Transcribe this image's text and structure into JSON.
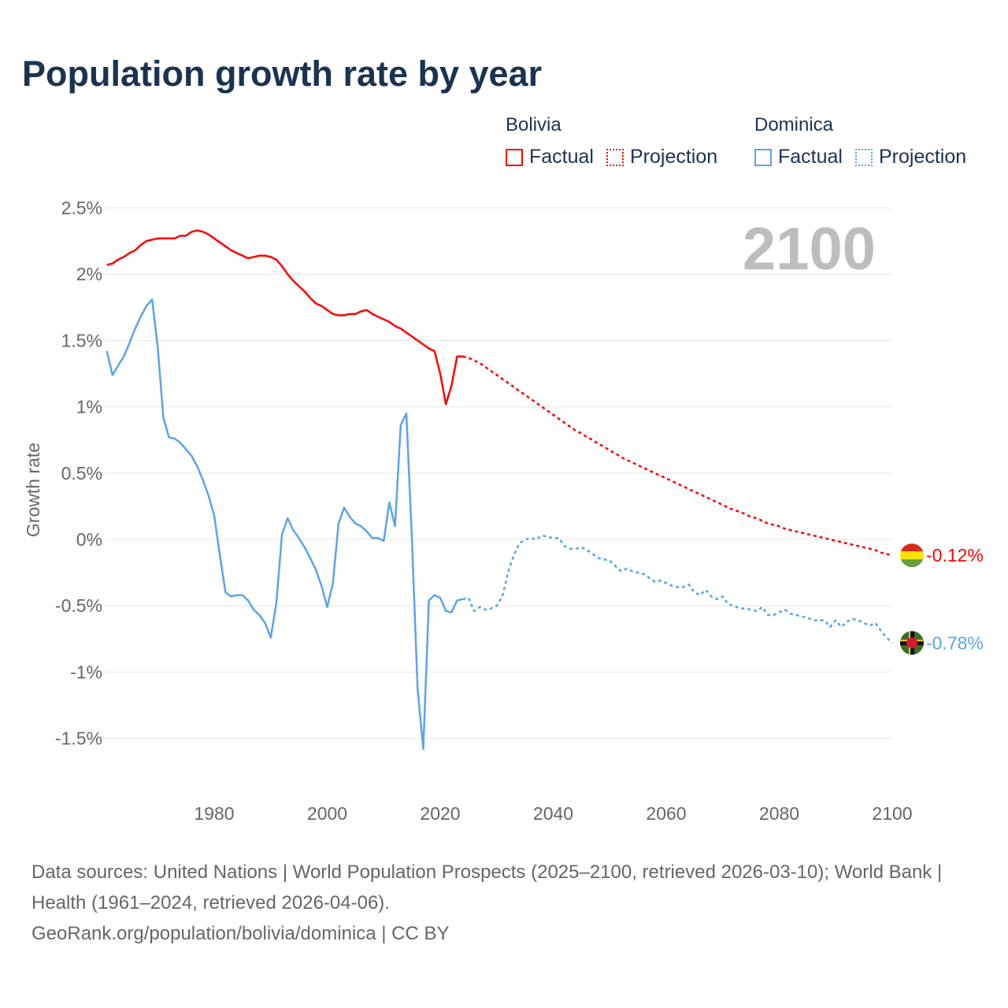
{
  "title": "Population growth rate by year",
  "legend": {
    "groups": [
      {
        "country": "Bolivia",
        "factual": "Factual",
        "projection": "Projection",
        "color": "#ff0000"
      },
      {
        "country": "Dominica",
        "factual": "Factual",
        "projection": "Projection",
        "color": "#5ba4ea"
      }
    ]
  },
  "year_display": "2100",
  "footer": {
    "sources": "Data sources: United Nations | World Population Prospects (2025–2100, retrieved 2026-03-10); World Bank | Health (1961–2024, retrieved 2026-04-06).",
    "credit": "GeoRank.org/population/bolivia/dominica | CC BY"
  },
  "chart_data": {
    "type": "line",
    "title": "Population growth rate by year",
    "xlabel": "",
    "ylabel": "Growth rate",
    "xlim": [
      1961,
      2100
    ],
    "ylim": [
      -1.75,
      2.5
    ],
    "x_ticks": [
      1980,
      2000,
      2020,
      2040,
      2060,
      2080,
      2100
    ],
    "x_tick_labels": [
      "1980",
      "2000",
      "2020",
      "2040",
      "2060",
      "2080",
      "2100"
    ],
    "y_ticks": [
      2.5,
      2,
      1.5,
      1,
      0.5,
      0,
      -0.5,
      -1,
      -1.5
    ],
    "y_tick_labels": [
      "2.5%",
      "2%",
      "1.5%",
      "1%",
      "0.5%",
      "0%",
      "-0.5%",
      "-1%",
      "-1.5%"
    ],
    "grid": true,
    "legend_position": "top-right",
    "series": [
      {
        "name": "Bolivia",
        "color": "#ff0000",
        "end_label": "-0.12%",
        "factual": {
          "start": 1961,
          "values": [
            2.07,
            2.08,
            2.11,
            2.13,
            2.16,
            2.18,
            2.22,
            2.25,
            2.26,
            2.27,
            2.27,
            2.27,
            2.27,
            2.29,
            2.29,
            2.32,
            2.33,
            2.32,
            2.3,
            2.27,
            2.24,
            2.21,
            2.18,
            2.16,
            2.14,
            2.12,
            2.13,
            2.14,
            2.14,
            2.13,
            2.11,
            2.06,
            2.0,
            1.95,
            1.91,
            1.87,
            1.82,
            1.78,
            1.76,
            1.73,
            1.7,
            1.69,
            1.69,
            1.7,
            1.7,
            1.72,
            1.73,
            1.7,
            1.68,
            1.66,
            1.64,
            1.61,
            1.59,
            1.56,
            1.53,
            1.5,
            1.47,
            1.44,
            1.42,
            1.25,
            1.02,
            1.16,
            1.38,
            1.38
          ]
        },
        "projection": {
          "start": 2024,
          "values": [
            1.38,
            1.37,
            1.35,
            1.33,
            1.3,
            1.27,
            1.24,
            1.21,
            1.18,
            1.15,
            1.12,
            1.09,
            1.06,
            1.03,
            1.0,
            0.97,
            0.94,
            0.91,
            0.88,
            0.85,
            0.82,
            0.8,
            0.77,
            0.75,
            0.72,
            0.7,
            0.67,
            0.65,
            0.62,
            0.6,
            0.58,
            0.56,
            0.54,
            0.52,
            0.5,
            0.48,
            0.46,
            0.44,
            0.42,
            0.4,
            0.38,
            0.36,
            0.34,
            0.32,
            0.3,
            0.28,
            0.26,
            0.24,
            0.22,
            0.21,
            0.19,
            0.17,
            0.16,
            0.14,
            0.12,
            0.11,
            0.1,
            0.08,
            0.07,
            0.06,
            0.05,
            0.04,
            0.03,
            0.02,
            0.01,
            0.0,
            -0.01,
            -0.02,
            -0.03,
            -0.04,
            -0.05,
            -0.06,
            -0.07,
            -0.08,
            -0.1,
            -0.11,
            -0.12
          ]
        }
      },
      {
        "name": "Dominica",
        "color": "#5ba4ea",
        "end_label": "-0.78%",
        "factual": {
          "start": 1961,
          "values": [
            1.42,
            1.24,
            1.31,
            1.38,
            1.48,
            1.59,
            1.68,
            1.76,
            1.81,
            1.45,
            0.92,
            0.77,
            0.76,
            0.73,
            0.68,
            0.63,
            0.55,
            0.45,
            0.33,
            0.18,
            -0.12,
            -0.4,
            -0.43,
            -0.42,
            -0.42,
            -0.46,
            -0.53,
            -0.57,
            -0.63,
            -0.74,
            -0.48,
            0.04,
            0.16,
            0.07,
            0.01,
            -0.06,
            -0.14,
            -0.23,
            -0.35,
            -0.51,
            -0.33,
            0.12,
            0.24,
            0.17,
            0.12,
            0.1,
            0.06,
            0.01,
            0.01,
            -0.01,
            0.28,
            0.1,
            0.86,
            0.95,
            0.0,
            -1.13,
            -1.58,
            -0.46,
            -0.42,
            -0.44,
            -0.54,
            -0.55,
            -0.46,
            -0.45
          ]
        },
        "projection": {
          "start": 2024,
          "values": [
            -0.45,
            -0.44,
            -0.54,
            -0.51,
            -0.53,
            -0.52,
            -0.5,
            -0.43,
            -0.25,
            -0.12,
            -0.03,
            0.0,
            0.01,
            0.0,
            0.03,
            0.02,
            0.01,
            0.01,
            -0.05,
            -0.07,
            -0.07,
            -0.06,
            -0.08,
            -0.11,
            -0.14,
            -0.15,
            -0.16,
            -0.2,
            -0.24,
            -0.22,
            -0.24,
            -0.25,
            -0.26,
            -0.29,
            -0.32,
            -0.31,
            -0.33,
            -0.35,
            -0.36,
            -0.36,
            -0.34,
            -0.4,
            -0.42,
            -0.38,
            -0.43,
            -0.45,
            -0.43,
            -0.49,
            -0.5,
            -0.52,
            -0.52,
            -0.53,
            -0.54,
            -0.51,
            -0.57,
            -0.57,
            -0.55,
            -0.53,
            -0.56,
            -0.57,
            -0.58,
            -0.59,
            -0.61,
            -0.61,
            -0.61,
            -0.66,
            -0.61,
            -0.66,
            -0.62,
            -0.6,
            -0.61,
            -0.63,
            -0.65,
            -0.63,
            -0.69,
            -0.74,
            -0.78
          ]
        }
      }
    ]
  }
}
